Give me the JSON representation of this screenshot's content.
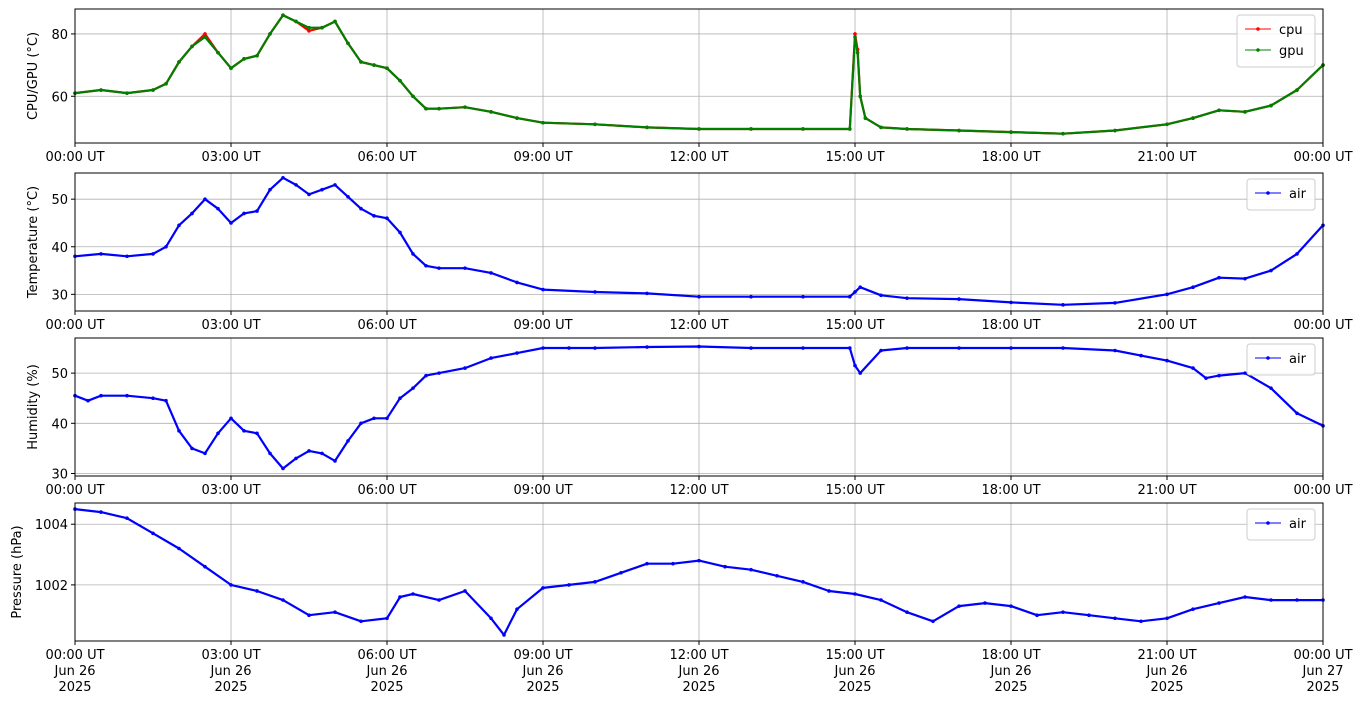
{
  "figure": {
    "x_tick_labels": [
      "00:00 UT",
      "03:00 UT",
      "06:00 UT",
      "09:00 UT",
      "12:00 UT",
      "15:00 UT",
      "18:00 UT",
      "21:00 UT",
      "00:00 UT"
    ],
    "x_date_labels": [
      "Jun 26",
      "Jun 26",
      "Jun 26",
      "Jun 26",
      "Jun 26",
      "Jun 26",
      "Jun 26",
      "Jun 26",
      "Jun 27"
    ],
    "x_year_labels": [
      "2025",
      "2025",
      "2025",
      "2025",
      "2025",
      "2025",
      "2025",
      "2025",
      "2025"
    ]
  },
  "chart_data": [
    {
      "type": "line",
      "ylabel": "CPU/GPU (°C)",
      "x_unit": "hours UT from 2025-06-26 00:00",
      "xlim": [
        0,
        24
      ],
      "ylim": [
        45,
        88
      ],
      "yticks": [
        60,
        80
      ],
      "grid": true,
      "legend": "top-right",
      "series": [
        {
          "name": "cpu",
          "color": "#ff0000",
          "x": [
            0,
            0.5,
            1.0,
            1.5,
            1.75,
            2.0,
            2.25,
            2.5,
            2.75,
            3.0,
            3.25,
            3.5,
            3.75,
            4.0,
            4.25,
            4.5,
            4.75,
            5.0,
            5.25,
            5.5,
            5.75,
            6.0,
            6.25,
            6.5,
            6.75,
            7.0,
            7.5,
            8.0,
            8.5,
            9.0,
            10.0,
            11.0,
            12.0,
            13.0,
            14.0,
            14.9,
            15.0,
            15.05,
            15.1,
            15.2,
            15.5,
            16.0,
            17.0,
            18.0,
            19.0,
            20.0,
            21.0,
            21.5,
            22.0,
            22.5,
            23.0,
            23.5,
            24.0
          ],
          "values": [
            61,
            62,
            61,
            62,
            64,
            71,
            76,
            80,
            74,
            69,
            72,
            73,
            80,
            86,
            84,
            81,
            82,
            84,
            77,
            71,
            70,
            69,
            65,
            60,
            56,
            56,
            56.5,
            55,
            53,
            51.5,
            51,
            50,
            49.5,
            49.5,
            49.5,
            49.5,
            80,
            75,
            60,
            53,
            50,
            49.5,
            49,
            48.5,
            48,
            49,
            51,
            53,
            55.5,
            55,
            57,
            62,
            70
          ]
        },
        {
          "name": "gpu",
          "color": "#008000",
          "x": [
            0,
            0.5,
            1.0,
            1.5,
            1.75,
            2.0,
            2.25,
            2.5,
            2.75,
            3.0,
            3.25,
            3.5,
            3.75,
            4.0,
            4.25,
            4.5,
            4.75,
            5.0,
            5.25,
            5.5,
            5.75,
            6.0,
            6.25,
            6.5,
            6.75,
            7.0,
            7.5,
            8.0,
            8.5,
            9.0,
            10.0,
            11.0,
            12.0,
            13.0,
            14.0,
            14.9,
            15.0,
            15.05,
            15.1,
            15.2,
            15.5,
            16.0,
            17.0,
            18.0,
            19.0,
            20.0,
            21.0,
            21.5,
            22.0,
            22.5,
            23.0,
            23.5,
            24.0
          ],
          "values": [
            61,
            62,
            61,
            62,
            64,
            71,
            76,
            79,
            74,
            69,
            72,
            73,
            80,
            86,
            84,
            82,
            82,
            84,
            77,
            71,
            70,
            69,
            65,
            60,
            56,
            56,
            56.5,
            55,
            53,
            51.5,
            51,
            50,
            49.5,
            49.5,
            49.5,
            49.5,
            79,
            74,
            60,
            53,
            50,
            49.5,
            49,
            48.5,
            48,
            49,
            51,
            53,
            55.5,
            55,
            57,
            62,
            70
          ]
        }
      ]
    },
    {
      "type": "line",
      "ylabel": "Temperature (°C)",
      "x_unit": "hours UT from 2025-06-26 00:00",
      "xlim": [
        0,
        24
      ],
      "ylim": [
        26.5,
        55.5
      ],
      "yticks": [
        30,
        40,
        50
      ],
      "grid": true,
      "legend": "top-right",
      "series": [
        {
          "name": "air",
          "color": "#0000ff",
          "x": [
            0,
            0.5,
            1.0,
            1.5,
            1.75,
            2.0,
            2.25,
            2.5,
            2.75,
            3.0,
            3.25,
            3.5,
            3.75,
            4.0,
            4.25,
            4.5,
            4.75,
            5.0,
            5.25,
            5.5,
            5.75,
            6.0,
            6.25,
            6.5,
            6.75,
            7.0,
            7.5,
            8.0,
            8.5,
            9.0,
            10.0,
            11.0,
            12.0,
            13.0,
            14.0,
            14.9,
            15.0,
            15.1,
            15.5,
            16.0,
            17.0,
            18.0,
            19.0,
            20.0,
            21.0,
            21.5,
            22.0,
            22.5,
            23.0,
            23.5,
            24.0
          ],
          "values": [
            38,
            38.5,
            38,
            38.5,
            40,
            44.5,
            47,
            50,
            48,
            45,
            47,
            47.5,
            52,
            54.5,
            53,
            51,
            52,
            53,
            50.5,
            48,
            46.5,
            46,
            43,
            38.5,
            36,
            35.5,
            35.5,
            34.5,
            32.5,
            31,
            30.5,
            30.2,
            29.5,
            29.5,
            29.5,
            29.5,
            30.5,
            31.5,
            29.8,
            29.2,
            29,
            28.3,
            27.8,
            28.2,
            30,
            31.5,
            33.5,
            33.3,
            35,
            38.5,
            44.5
          ]
        }
      ]
    },
    {
      "type": "line",
      "ylabel": "Humidity (%)",
      "x_unit": "hours UT from 2025-06-26 00:00",
      "xlim": [
        0,
        24
      ],
      "ylim": [
        29.5,
        57
      ],
      "yticks": [
        30,
        40,
        50
      ],
      "grid": true,
      "legend": "top-right",
      "series": [
        {
          "name": "air",
          "color": "#0000ff",
          "x": [
            0,
            0.25,
            0.5,
            1.0,
            1.5,
            1.75,
            2.0,
            2.25,
            2.5,
            2.75,
            3.0,
            3.25,
            3.5,
            3.75,
            4.0,
            4.25,
            4.5,
            4.75,
            5.0,
            5.25,
            5.5,
            5.75,
            6.0,
            6.25,
            6.5,
            6.75,
            7.0,
            7.5,
            8.0,
            8.5,
            9.0,
            9.5,
            10.0,
            11.0,
            12.0,
            13.0,
            14.0,
            14.9,
            15.0,
            15.1,
            15.5,
            16.0,
            17.0,
            18.0,
            19.0,
            20.0,
            20.5,
            21.0,
            21.5,
            21.75,
            22.0,
            22.5,
            23.0,
            23.5,
            24.0
          ],
          "values": [
            45.5,
            44.5,
            45.5,
            45.5,
            45,
            44.5,
            38.5,
            35,
            34,
            38,
            41,
            38.5,
            38,
            34,
            31,
            33,
            34.5,
            34,
            32.5,
            36.5,
            40,
            41,
            41,
            45,
            47,
            49.5,
            50,
            51,
            53,
            54,
            55,
            55,
            55,
            55.2,
            55.3,
            55,
            55,
            55,
            51.5,
            50,
            54.5,
            55,
            55,
            55,
            55,
            54.5,
            53.5,
            52.5,
            51,
            49,
            49.5,
            50,
            47,
            42,
            39.5
          ]
        }
      ]
    },
    {
      "type": "line",
      "ylabel": "Pressure (hPa)",
      "x_unit": "hours UT from 2025-06-26 00:00",
      "xlim": [
        0,
        24
      ],
      "ylim": [
        1000.15,
        1004.7
      ],
      "yticks": [
        1002,
        1004
      ],
      "grid": true,
      "legend": "top-right",
      "series": [
        {
          "name": "air",
          "color": "#0000ff",
          "x": [
            0,
            0.5,
            1.0,
            1.5,
            2.0,
            2.5,
            3.0,
            3.5,
            4.0,
            4.5,
            5.0,
            5.5,
            6.0,
            6.25,
            6.5,
            7.0,
            7.5,
            8.0,
            8.25,
            8.5,
            9.0,
            9.5,
            10.0,
            10.5,
            11.0,
            11.5,
            12.0,
            12.5,
            13.0,
            13.5,
            14.0,
            14.5,
            15.0,
            15.5,
            16.0,
            16.5,
            17.0,
            17.5,
            18.0,
            18.5,
            19.0,
            19.5,
            20.0,
            20.5,
            21.0,
            21.5,
            22.0,
            22.5,
            23.0,
            23.5,
            24.0
          ],
          "values": [
            1004.5,
            1004.4,
            1004.2,
            1003.7,
            1003.2,
            1002.6,
            1002.0,
            1001.8,
            1001.5,
            1001.0,
            1001.1,
            1000.8,
            1000.9,
            1001.6,
            1001.7,
            1001.5,
            1001.8,
            1000.9,
            1000.35,
            1001.2,
            1001.9,
            1002.0,
            1002.1,
            1002.4,
            1002.7,
            1002.7,
            1002.8,
            1002.6,
            1002.5,
            1002.3,
            1002.1,
            1001.8,
            1001.7,
            1001.5,
            1001.1,
            1000.8,
            1001.3,
            1001.4,
            1001.3,
            1001.0,
            1001.1,
            1001.0,
            1000.9,
            1000.8,
            1000.9,
            1001.2,
            1001.4,
            1001.6,
            1001.5,
            1001.5,
            1001.5
          ]
        }
      ]
    }
  ]
}
